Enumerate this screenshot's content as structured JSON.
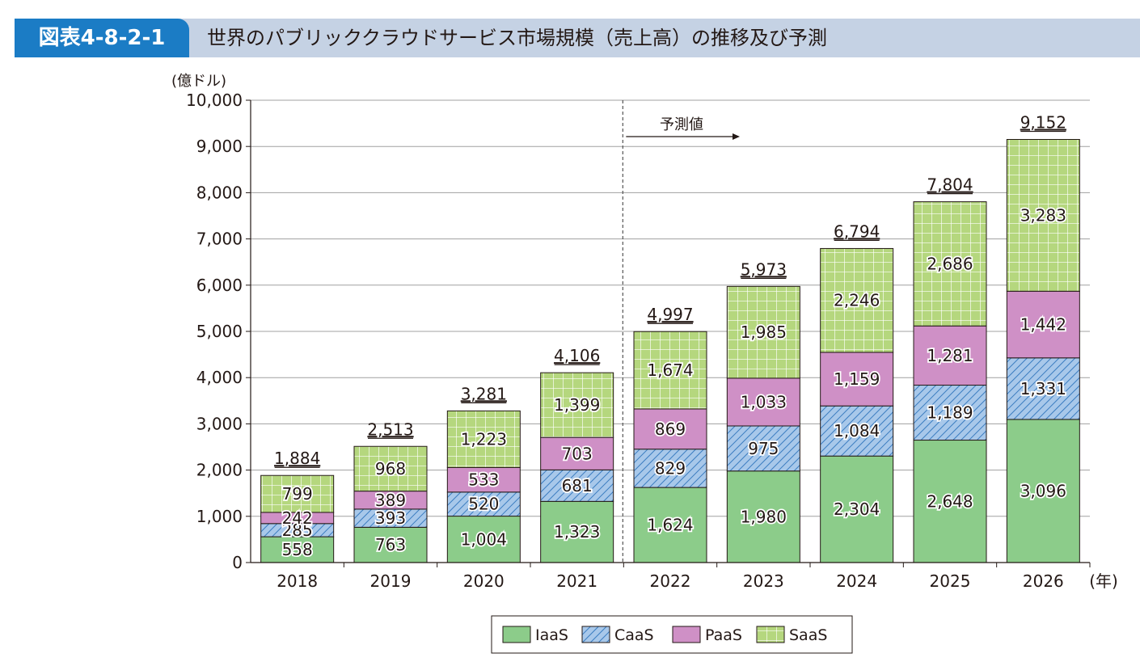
{
  "header": {
    "figure_no": "図表4-8-2-1",
    "title": "世界のパブリッククラウドサービス市場規模（売上高）の推移及び予測"
  },
  "colors": {
    "header_bg": "#c5d2e4",
    "badge_bg": "#1b7cc5",
    "IaaS": "#8ccc8a",
    "CaaS": "#a8c8ea",
    "PaaS": "#cf90c6",
    "SaaS": "#b5d77e"
  },
  "chart_data": {
    "type": "bar",
    "stacked": true,
    "ylabel": "(億ドル)",
    "xlabel": "(年)",
    "ylim": [
      0,
      10000
    ],
    "yticks": [
      "0",
      "1,000",
      "2,000",
      "3,000",
      "4,000",
      "5,000",
      "6,000",
      "7,000",
      "8,000",
      "9,000",
      "10,000"
    ],
    "categories": [
      "2018",
      "2019",
      "2020",
      "2021",
      "2022",
      "2023",
      "2024",
      "2025",
      "2026"
    ],
    "series": [
      {
        "name": "IaaS",
        "values": [
          558,
          763,
          1004,
          1323,
          1624,
          1980,
          2304,
          2648,
          3096
        ],
        "labels": [
          "558",
          "763",
          "1,004",
          "1,323",
          "1,624",
          "1,980",
          "2,304",
          "2,648",
          "3,096"
        ]
      },
      {
        "name": "CaaS",
        "values": [
          285,
          393,
          520,
          681,
          829,
          975,
          1084,
          1189,
          1331
        ],
        "labels": [
          "285",
          "393",
          "520",
          "681",
          "829",
          "975",
          "1,084",
          "1,189",
          "1,331"
        ]
      },
      {
        "name": "PaaS",
        "values": [
          242,
          389,
          533,
          703,
          869,
          1033,
          1159,
          1281,
          1442
        ],
        "labels": [
          "242",
          "389",
          "533",
          "703",
          "869",
          "1,033",
          "1,159",
          "1,281",
          "1,442"
        ]
      },
      {
        "name": "SaaS",
        "values": [
          799,
          968,
          1223,
          1399,
          1674,
          1985,
          2246,
          2686,
          3283
        ],
        "labels": [
          "799",
          "968",
          "1,223",
          "1,399",
          "1,674",
          "1,985",
          "2,246",
          "2,686",
          "3,283"
        ]
      }
    ],
    "totals": [
      1884,
      2513,
      3281,
      4106,
      4997,
      5973,
      6794,
      7804,
      9152
    ],
    "total_labels": [
      "1,884",
      "2,513",
      "3,281",
      "4,106",
      "4,997",
      "5,973",
      "6,794",
      "7,804",
      "9,152"
    ],
    "forecast": {
      "label": "予測値",
      "start_category": "2022"
    },
    "grid": true,
    "legend_position": "bottom"
  }
}
